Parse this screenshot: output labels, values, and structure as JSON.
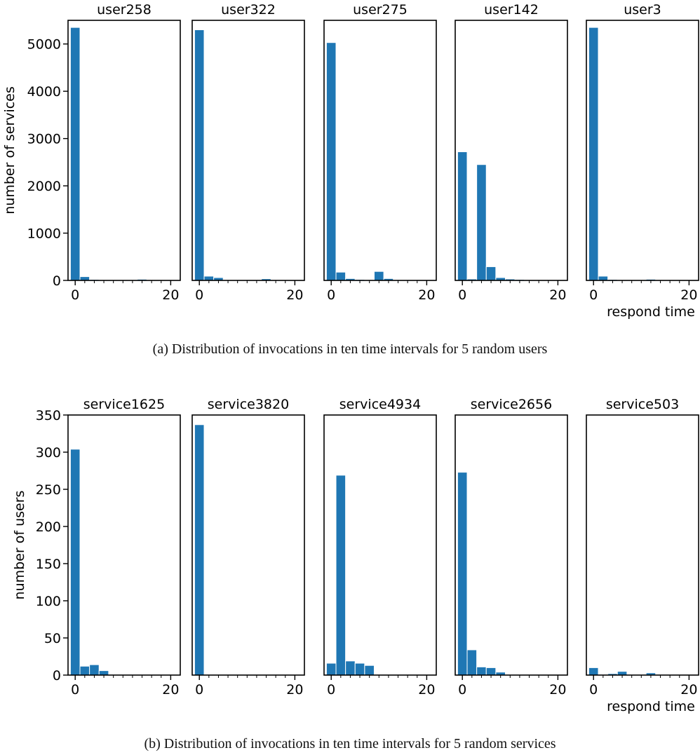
{
  "figure": {
    "caption_a": "(a)  Distribution of invocations in ten time intervals for 5 random users",
    "caption_b": "(b)  Distribution of invocations in ten time intervals for 5 random services"
  },
  "colors": {
    "bar": "#1f77b4",
    "axis": "#000000"
  },
  "chart_data": [
    {
      "type": "bar",
      "group": "a",
      "ylabel": "number of services",
      "xlabel": "respond time",
      "yticks": [
        0,
        1000,
        2000,
        3000,
        4000,
        5000
      ],
      "ylim": [
        0,
        5500
      ],
      "xticks": [
        0,
        20
      ],
      "xlim": [
        -1.5,
        22
      ],
      "bin_edges": [
        -1,
        1,
        3,
        5,
        7,
        9,
        11,
        13,
        15,
        17,
        19
      ],
      "grid": false,
      "panels": [
        {
          "title": "user258",
          "values": [
            5350,
            80,
            20,
            10,
            5,
            5,
            10,
            25,
            10,
            5
          ]
        },
        {
          "title": "user322",
          "values": [
            5300,
            90,
            60,
            10,
            5,
            5,
            15,
            35,
            10,
            5
          ]
        },
        {
          "title": "user275",
          "values": [
            5030,
            175,
            40,
            20,
            5,
            190,
            40,
            10,
            5,
            5
          ]
        },
        {
          "title": "user142",
          "values": [
            2720,
            30,
            2450,
            290,
            60,
            30,
            20,
            15,
            10,
            5
          ]
        },
        {
          "title": "user3",
          "values": [
            5350,
            90,
            20,
            10,
            5,
            10,
            25,
            10,
            5,
            5
          ]
        }
      ]
    },
    {
      "type": "bar",
      "group": "b",
      "ylabel": "number of users",
      "xlabel": "respond time",
      "yticks": [
        0,
        50,
        100,
        150,
        200,
        250,
        300,
        350
      ],
      "ylim": [
        0,
        350
      ],
      "xticks": [
        0,
        20
      ],
      "xlim": [
        -1.5,
        22
      ],
      "bin_edges": [
        -1,
        1,
        3,
        5,
        7,
        9,
        11,
        13,
        15,
        17,
        19
      ],
      "grid": false,
      "panels": [
        {
          "title": "service1625",
          "values": [
            304,
            12,
            14,
            6,
            0,
            0,
            0,
            0,
            0,
            0
          ]
        },
        {
          "title": "service3820",
          "values": [
            337,
            0,
            0,
            0,
            0,
            0,
            0,
            0,
            0,
            0
          ]
        },
        {
          "title": "service4934",
          "values": [
            16,
            269,
            19,
            16,
            13,
            0,
            0,
            0,
            0,
            0
          ]
        },
        {
          "title": "service2656",
          "values": [
            273,
            34,
            11,
            10,
            4,
            0,
            0,
            0,
            0,
            0
          ]
        },
        {
          "title": "service503",
          "values": [
            10,
            0,
            2,
            5,
            0,
            0,
            3,
            0,
            0,
            0
          ]
        }
      ]
    }
  ]
}
